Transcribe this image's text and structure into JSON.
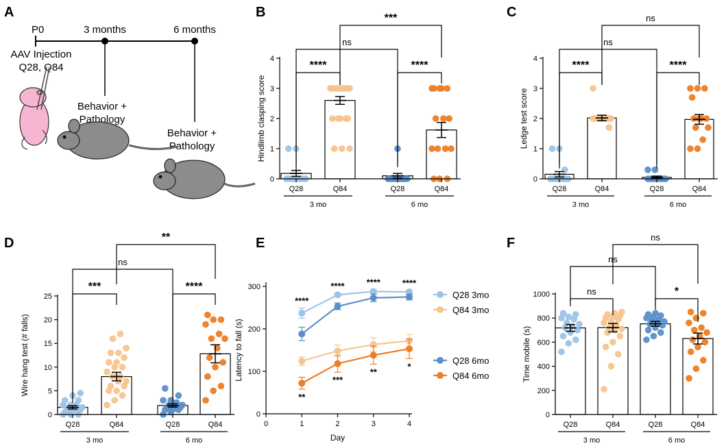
{
  "colors": {
    "q28_3mo": "#9ec3e6",
    "q84_3mo": "#f7c48e",
    "q28_6mo": "#5b8fcb",
    "q84_6mo": "#ee7d24",
    "mouse_pink": "#f6b6d2",
    "mouse_grey": "#8c8c8c"
  },
  "panel_labels": {
    "A": "A",
    "B": "B",
    "C": "C",
    "D": "D",
    "E": "E",
    "F": "F"
  },
  "timeline": {
    "p0": "P0",
    "t3": "3 months",
    "t6": "6 months",
    "injection_line1": "AAV Injection",
    "injection_line2": "Q28, Q84",
    "behavior1_line1": "Behavior +",
    "behavior1_line2": "Pathology",
    "behavior2_line1": "Behavior +",
    "behavior2_line2": "Pathology"
  },
  "group_labels": {
    "q28": "Q28",
    "q84": "Q84",
    "g3": "3 mo",
    "g6": "6 mo"
  },
  "chart_data": [
    {
      "panel": "B",
      "type": "bar",
      "ylabel": "Hindlimb clasping score",
      "ylim": [
        0,
        4
      ],
      "yticks": [
        "0",
        "1",
        "2",
        "3",
        "4"
      ],
      "groups": [
        {
          "name": "Q28 3 mo",
          "mean": 0.18,
          "sem": 0.1,
          "points": [
            0,
            0,
            0,
            0,
            0,
            0,
            0,
            0,
            0,
            0,
            0,
            0,
            0,
            0,
            1,
            1
          ]
        },
        {
          "name": "Q84 3 mo",
          "mean": 2.6,
          "sem": 0.13,
          "points": [
            3,
            3,
            3,
            3,
            3,
            3,
            3,
            3,
            3,
            3,
            3,
            3,
            2,
            2,
            2,
            2,
            2,
            1,
            1,
            1
          ]
        },
        {
          "name": "Q28 6 mo",
          "mean": 0.1,
          "sem": 0.08,
          "points": [
            0,
            0,
            0,
            0,
            0,
            0,
            0,
            0,
            0,
            0,
            0,
            0,
            0,
            0,
            0,
            1
          ]
        },
        {
          "name": "Q84 6 mo",
          "mean": 1.62,
          "sem": 0.25,
          "points": [
            3,
            3,
            3,
            3,
            3,
            2,
            2,
            2,
            1,
            1,
            1,
            1,
            0,
            0,
            0
          ]
        }
      ],
      "comparisons": {
        "q28_vs_q84_3mo": "****",
        "q28_vs_q84_6mo": "****",
        "q28_3mo_vs_6mo": "ns",
        "q84_3mo_vs_6mo": "***"
      }
    },
    {
      "panel": "C",
      "type": "bar",
      "ylabel": "Ledge test score",
      "ylim": [
        0,
        4
      ],
      "yticks": [
        "0",
        "1",
        "2",
        "3",
        "4"
      ],
      "groups": [
        {
          "name": "Q28 3 mo",
          "mean": 0.15,
          "sem": 0.09,
          "points": [
            0,
            0,
            0,
            0,
            0,
            0,
            0,
            0,
            0,
            0,
            0,
            0,
            0,
            0.3,
            1,
            1
          ]
        },
        {
          "name": "Q84 3 mo",
          "mean": 2.02,
          "sem": 0.09,
          "points": [
            3,
            2,
            2,
            2,
            2,
            2,
            2,
            2,
            2,
            2,
            2,
            2,
            2,
            2,
            2,
            2,
            1.7
          ]
        },
        {
          "name": "Q28 6 mo",
          "mean": 0.05,
          "sem": 0.04,
          "points": [
            0,
            0,
            0,
            0,
            0,
            0,
            0,
            0,
            0,
            0,
            0,
            0.3,
            0.3
          ]
        },
        {
          "name": "Q84 6 mo",
          "mean": 1.97,
          "sem": 0.16,
          "points": [
            3,
            3,
            3,
            2.7,
            2,
            2,
            2,
            2,
            1.7,
            1.7,
            1.3,
            1,
            1
          ]
        }
      ],
      "comparisons": {
        "q28_vs_q84_3mo": "****",
        "q28_vs_q84_6mo": "****",
        "q28_3mo_vs_6mo": "ns",
        "q84_3mo_vs_6mo": "ns"
      }
    },
    {
      "panel": "D",
      "type": "bar",
      "ylabel": "Wire hang test (# falls)",
      "ylim": [
        0,
        25
      ],
      "yticks": [
        "0",
        "5",
        "10",
        "15",
        "20",
        "25"
      ],
      "groups": [
        {
          "name": "Q28 3 mo",
          "mean": 1.5,
          "sem": 0.35,
          "points": [
            0,
            0,
            0,
            0.5,
            1,
            1,
            1,
            1,
            1.5,
            1.5,
            2,
            2,
            2,
            3,
            3,
            4,
            4.5
          ]
        },
        {
          "name": "Q84 3 mo",
          "mean": 8.0,
          "sem": 0.9,
          "points": [
            2,
            3,
            4,
            5,
            5,
            6,
            6,
            7,
            7,
            8,
            8,
            9,
            10,
            10,
            11,
            11,
            12,
            13,
            13,
            14,
            16,
            17
          ]
        },
        {
          "name": "Q28 6 mo",
          "mean": 1.9,
          "sem": 0.35,
          "points": [
            0,
            0.5,
            1,
            1,
            1,
            1.5,
            1.5,
            2,
            2,
            2,
            2.5,
            3,
            3,
            4,
            5.5
          ]
        },
        {
          "name": "Q84 6 mo",
          "mean": 12.8,
          "sem": 1.9,
          "points": [
            3,
            5,
            6,
            8,
            10,
            11,
            12,
            14,
            16,
            16,
            17,
            19,
            20,
            20,
            21
          ]
        }
      ],
      "comparisons": {
        "q28_vs_q84_3mo": "***",
        "q28_vs_q84_6mo": "****",
        "q28_3mo_vs_6mo": "ns",
        "q84_3mo_vs_6mo": "**"
      }
    },
    {
      "panel": "E",
      "type": "line",
      "xlabel": "Day",
      "ylabel": "Latency to fall (s)",
      "xlim": [
        0,
        4
      ],
      "ylim": [
        0,
        300
      ],
      "xticks": [
        "0",
        "1",
        "2",
        "3",
        "4"
      ],
      "yticks": [
        "0",
        "100",
        "200",
        "300"
      ],
      "x": [
        1,
        2,
        3,
        4
      ],
      "series": [
        {
          "name": "Q28 3mo",
          "values": [
            237,
            280,
            288,
            287
          ],
          "sem": [
            12,
            4,
            5,
            4
          ]
        },
        {
          "name": "Q84 3mo",
          "values": [
            124,
            148,
            163,
            172
          ],
          "sem": [
            10,
            14,
            16,
            15
          ]
        },
        {
          "name": "Q28 6mo",
          "values": [
            188,
            253,
            273,
            275
          ],
          "sem": [
            16,
            8,
            9,
            7
          ]
        },
        {
          "name": "Q84 6mo",
          "values": [
            72,
            118,
            138,
            153
          ],
          "sem": [
            14,
            20,
            21,
            23
          ]
        }
      ],
      "sig_3mo": [
        "****",
        "****",
        "****",
        "****"
      ],
      "sig_6mo": [
        "**",
        "***",
        "**",
        "*"
      ]
    },
    {
      "panel": "F",
      "type": "bar",
      "ylabel": "Time mobile (s)",
      "ylim": [
        0,
        1000
      ],
      "yticks": [
        "0",
        "200",
        "400",
        "600",
        "800",
        "1000"
      ],
      "groups": [
        {
          "name": "Q28 3 mo",
          "mean": 718,
          "sem": 28,
          "points": [
            520,
            590,
            620,
            650,
            680,
            700,
            720,
            730,
            750,
            760,
            790,
            800,
            810,
            830,
            840
          ]
        },
        {
          "name": "Q84 3 mo",
          "mean": 720,
          "sem": 35,
          "points": [
            210,
            400,
            500,
            560,
            600,
            650,
            680,
            700,
            710,
            720,
            740,
            760,
            770,
            790,
            800,
            810,
            820,
            830,
            840,
            850
          ]
        },
        {
          "name": "Q28 6 mo",
          "mean": 752,
          "sem": 20,
          "points": [
            620,
            650,
            680,
            700,
            720,
            740,
            750,
            760,
            770,
            780,
            790,
            800,
            810,
            820,
            830,
            840
          ]
        },
        {
          "name": "Q84 6 mo",
          "mean": 630,
          "sem": 45,
          "points": [
            300,
            380,
            450,
            520,
            560,
            600,
            620,
            650,
            680,
            700,
            720,
            760,
            800,
            840,
            850
          ]
        }
      ],
      "comparisons": {
        "q28_vs_q84_3mo": "ns",
        "q28_vs_q84_6mo": "*",
        "q28_3mo_vs_6mo": "ns",
        "q84_3mo_vs_6mo": "ns"
      }
    }
  ]
}
